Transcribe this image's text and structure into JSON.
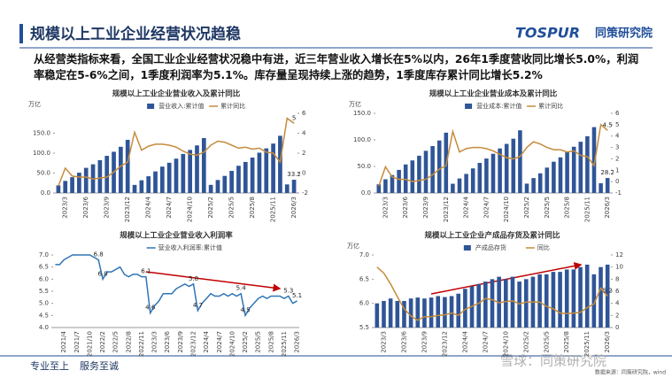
{
  "header": {
    "title": "规模以上工业企业经营状况趋稳",
    "logo_en": "TOSPUR",
    "logo_cn": "同策研究院"
  },
  "summary": "从经营类指标来看，全国工业企业经营状况稳中有进，近三年营业收入增长在5%以内，26年1季度营收同比增长5.0%，利润率稳定在5-6%之间，1季度利润率为5.1%。库存量呈现持续上涨的趋势，1季度库存累计同比增长5.2%",
  "chart_data": [
    {
      "type": "bar",
      "title": "规模以上工业企业营业收入及累计同比",
      "y_label": "万亿",
      "categories": [
        null,
        "2023/3",
        null,
        null,
        "2023/6",
        null,
        null,
        "2023/9",
        null,
        null,
        "2023/12",
        null,
        null,
        "2024/4",
        null,
        null,
        "2024/7",
        null,
        null,
        "2024/10",
        null,
        null,
        "2025/2",
        null,
        null,
        "2025/5",
        null,
        null,
        "2025/8",
        null,
        null,
        "2025/11",
        null,
        null,
        "2026/3"
      ],
      "series": [
        {
          "name": "营业收入:累计值",
          "type": "bar",
          "color": "#2f5597",
          "values": [
            19.1,
            30.3,
            39.6,
            51.0,
            63.1,
            72.0,
            82.4,
            93.2,
            103.5,
            116.0,
            133.4,
            20.3,
            31.9,
            42.0,
            54.1,
            66.2,
            75.9,
            86.2,
            98.0,
            108.0,
            119.4,
            137.8,
            20.4,
            32.6,
            42.9,
            55.5,
            68.3,
            77.9,
            88.9,
            101.2,
            112.0,
            124.0,
            143.6,
            21.5,
            33.2
          ],
          "value_labels": [
            null,
            null,
            null,
            null,
            null,
            null,
            null,
            null,
            null,
            null,
            null,
            null,
            null,
            null,
            null,
            null,
            null,
            null,
            null,
            null,
            null,
            null,
            null,
            null,
            null,
            null,
            null,
            null,
            null,
            null,
            null,
            null,
            null,
            null,
            "33.2"
          ]
        },
        {
          "name": "累计同比",
          "type": "line",
          "axis": "y2",
          "color": "#c58b3c",
          "values": [
            -1.3,
            0.5,
            -0.3,
            -0.4,
            -0.4,
            -0.6,
            -0.5,
            -0.4,
            0.1,
            0.7,
            1.1,
            4.1,
            2.3,
            2.7,
            2.9,
            2.9,
            2.8,
            2.6,
            2.2,
            1.9,
            1.8,
            2.1,
            2.8,
            3.2,
            3.1,
            2.8,
            2.5,
            2.6,
            2.4,
            2.5,
            2.1,
            2.0,
            1.1,
            5.5,
            5
          ],
          "value_labels": [
            null,
            null,
            null,
            null,
            null,
            null,
            null,
            null,
            null,
            null,
            null,
            null,
            null,
            null,
            null,
            null,
            null,
            null,
            null,
            null,
            null,
            null,
            null,
            null,
            null,
            null,
            null,
            null,
            null,
            null,
            null,
            null,
            null,
            null,
            "5"
          ]
        }
      ],
      "ylim": [
        0,
        200
      ],
      "yticks": [
        {
          "value": 0,
          "label": "0.0"
        },
        {
          "value": 50,
          "label": "50.0"
        },
        {
          "value": 100,
          "label": "100.0"
        },
        {
          "value": 150,
          "label": "150.0"
        }
      ],
      "y2lim": [
        -2,
        6
      ],
      "y2ticks": [
        -2,
        0,
        2,
        4,
        6
      ]
    },
    {
      "type": "bar",
      "title": "规模以上工业企业营业成本及累计同比",
      "y_label": "万亿",
      "categories": [
        null,
        "2023/3",
        null,
        null,
        "2023/6",
        null,
        null,
        "2023/9",
        null,
        null,
        "2023/12",
        null,
        null,
        "2024/4",
        null,
        null,
        "2024/7",
        null,
        null,
        "2024/10",
        null,
        null,
        "2025/2",
        null,
        null,
        "2025/5",
        null,
        null,
        "2025/8",
        null,
        null,
        "2025/11",
        null,
        null,
        "2026/3"
      ],
      "series": [
        {
          "name": "营业成本:累计值",
          "type": "bar",
          "color": "#2f5597",
          "values": [
            16.3,
            25.8,
            33.8,
            43.5,
            53.7,
            61.3,
            70.2,
            79.4,
            88.3,
            98.8,
            113.6,
            17.4,
            27.3,
            35.9,
            46.3,
            56.6,
            64.9,
            73.8,
            83.8,
            92.4,
            102.2,
            118.0,
            17.6,
            28.1,
            37.0,
            47.8,
            58.9,
            67.1,
            76.6,
            87.1,
            96.5,
            106.9,
            124.0,
            18.3,
            28.2
          ],
          "value_labels": [
            null,
            null,
            null,
            null,
            null,
            null,
            null,
            null,
            null,
            null,
            null,
            null,
            null,
            null,
            null,
            null,
            null,
            null,
            null,
            null,
            null,
            null,
            null,
            null,
            null,
            null,
            null,
            null,
            null,
            null,
            null,
            null,
            null,
            null,
            "28.2"
          ]
        },
        {
          "name": "累计同比",
          "type": "line",
          "axis": "y2",
          "color": "#c58b3c",
          "values": [
            -0.4,
            1.3,
            0.4,
            0.2,
            0.2,
            0.0,
            0.1,
            0.2,
            0.6,
            1.1,
            1.4,
            4.4,
            2.6,
            2.9,
            3.0,
            3.0,
            2.9,
            2.7,
            2.4,
            2.1,
            2.0,
            2.2,
            3.0,
            3.5,
            3.3,
            3.0,
            2.8,
            2.8,
            2.6,
            2.7,
            2.3,
            2.2,
            1.4,
            5.0,
            4.5
          ],
          "value_labels": [
            null,
            null,
            null,
            null,
            null,
            null,
            null,
            null,
            null,
            null,
            null,
            null,
            null,
            null,
            null,
            null,
            null,
            null,
            null,
            null,
            null,
            null,
            null,
            null,
            null,
            null,
            null,
            null,
            null,
            null,
            null,
            null,
            null,
            null,
            "4.5"
          ]
        }
      ],
      "ylim": [
        0,
        150
      ],
      "yticks": [
        {
          "value": 0,
          "label": "0.0"
        },
        {
          "value": 50,
          "label": "50.0"
        },
        {
          "value": 100,
          "label": "100.0"
        },
        {
          "value": 150,
          "label": "150.0"
        }
      ],
      "y2lim": [
        -1,
        6
      ],
      "y2ticks": [
        -1,
        0,
        1,
        2,
        3,
        4,
        5,
        6
      ]
    },
    {
      "type": "line",
      "title": "规模以上工业企业营业收入利润率",
      "categories": [
        null,
        null,
        "2021/4",
        null,
        null,
        "2021/7",
        null,
        null,
        "2021/10",
        null,
        null,
        "2022/2",
        null,
        null,
        "2022/5",
        null,
        null,
        "2022/8",
        null,
        null,
        "2022/11",
        null,
        null,
        "2023/3",
        null,
        null,
        "2023/6",
        null,
        null,
        "2023/9",
        null,
        null,
        "2023/12",
        null,
        null,
        "2024/4",
        null,
        null,
        "2024/7",
        null,
        null,
        "2024/10",
        null,
        null,
        "2025/2",
        null,
        null,
        "2025/5",
        null,
        null,
        "2025/8",
        null,
        null,
        "2025/11",
        null,
        null,
        "2026/3"
      ],
      "series": [
        {
          "name": "营业收入利润率:累计值",
          "type": "line",
          "color": "#2e75b6",
          "values": [
            6.6,
            6.6,
            6.8,
            6.9,
            7.0,
            7.0,
            7.0,
            7.0,
            7.0,
            6.9,
            6.8,
            6.0,
            6.3,
            6.3,
            6.4,
            6.5,
            6.2,
            6.1,
            6.2,
            6.2,
            6.1,
            6.1,
            4.6,
            4.9,
            5.1,
            5.4,
            5.4,
            5.4,
            5.6,
            5.7,
            5.8,
            5.7,
            5.8,
            4.7,
            5.0,
            5.2,
            5.4,
            5.3,
            5.3,
            5.4,
            5.3,
            5.4,
            5.3,
            5.4,
            4.5,
            4.8,
            5.0,
            5.2,
            5.3,
            5.2,
            5.3,
            5.3,
            5.3,
            5.2,
            5.3,
            5.0,
            5.1
          ],
          "value_labels": [
            null,
            null,
            null,
            null,
            null,
            null,
            null,
            null,
            null,
            null,
            "6.8",
            "6.0",
            null,
            null,
            null,
            null,
            null,
            null,
            null,
            null,
            null,
            "6.1",
            "4.6",
            null,
            null,
            null,
            null,
            null,
            null,
            null,
            null,
            null,
            "5.8",
            "4.7",
            null,
            null,
            null,
            null,
            null,
            null,
            null,
            null,
            null,
            "5.4",
            "4.5",
            null,
            null,
            null,
            null,
            null,
            null,
            null,
            null,
            null,
            "5.3",
            null,
            "5.1"
          ]
        }
      ],
      "ylim": [
        4,
        7
      ],
      "yticks": [
        {
          "value": 4,
          "label": "4.0"
        },
        4.5,
        {
          "value": 5,
          "label": "5.0"
        },
        5.5,
        {
          "value": 6,
          "label": "6.0"
        },
        6.5,
        {
          "value": 7,
          "label": "7.0"
        }
      ]
    },
    {
      "type": "bar",
      "title": "规模以上工业企业产成品存货及累计同比",
      "y_label": "万亿",
      "categories": [
        null,
        "2023/3",
        null,
        null,
        "2023/6",
        null,
        null,
        "2023/9",
        null,
        null,
        "2023/12",
        null,
        null,
        "2024/4",
        null,
        null,
        "2024/7",
        null,
        null,
        "2024/10",
        null,
        null,
        "2025/2",
        null,
        null,
        "2025/5",
        null,
        null,
        "2025/8",
        null,
        null,
        "2025/11",
        null,
        null,
        "2026/3"
      ],
      "series": [
        {
          "name": "产成品存货",
          "type": "bar",
          "color": "#2f5597",
          "values": [
            6.0,
            6.05,
            6.1,
            6.05,
            6.05,
            6.1,
            6.12,
            6.1,
            6.12,
            6.15,
            6.13,
            6.15,
            6.2,
            6.3,
            6.35,
            6.4,
            6.45,
            6.5,
            6.55,
            6.5,
            6.55,
            6.45,
            6.5,
            6.55,
            6.6,
            6.6,
            6.65,
            6.65,
            6.7,
            6.7,
            6.75,
            6.8,
            6.6,
            6.75,
            6.8
          ]
        },
        {
          "name": "同比",
          "type": "line",
          "axis": "y2",
          "color": "#c58b3c",
          "values": [
            10.0,
            9.0,
            7.2,
            5.1,
            3.1,
            1.9,
            1.2,
            1.8,
            1.8,
            2.0,
            2.1,
            2.4,
            2.0,
            3.0,
            3.5,
            4.0,
            4.8,
            4.6,
            4.1,
            4.3,
            4.4,
            3.9,
            4.2,
            4.2,
            4.2,
            3.5,
            3.1,
            2.4,
            2.3,
            2.4,
            2.5,
            3.3,
            3.9,
            6.5,
            5.2
          ],
          "value_labels": [
            null,
            null,
            null,
            null,
            null,
            null,
            null,
            null,
            null,
            null,
            null,
            null,
            null,
            null,
            null,
            null,
            null,
            null,
            null,
            null,
            null,
            null,
            null,
            null,
            null,
            null,
            null,
            null,
            null,
            null,
            null,
            null,
            null,
            null,
            "5.2"
          ]
        }
      ],
      "ylim": [
        5.5,
        7
      ],
      "yticks": [
        5.5,
        {
          "value": 6,
          "label": "6.0"
        },
        6.5,
        {
          "value": 7,
          "label": "7.0"
        }
      ],
      "y2lim": [
        0,
        12
      ],
      "y2ticks": [
        0,
        2,
        4,
        6,
        8,
        10,
        12
      ]
    }
  ],
  "footer": {
    "slogan_1": "专业至上",
    "slogan_2": "服务至诚",
    "watermark": "雪球：同策研究院",
    "source": "数据来源：同策研究院，wind"
  }
}
